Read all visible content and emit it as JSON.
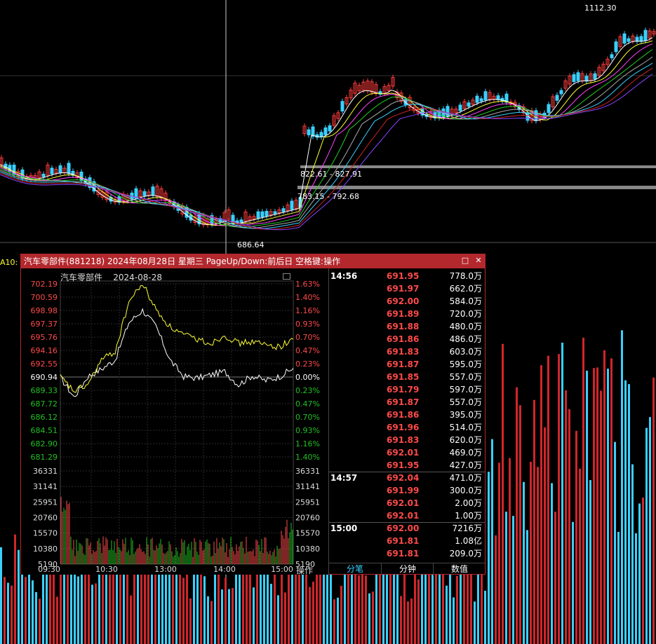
{
  "main_chart": {
    "high_label": "1112.30",
    "low_label": "686.64",
    "gap_upper": "822.61 - 827.91",
    "gap_lower": "783.15 - 792.68",
    "ma_prefix": "A10:"
  },
  "popup": {
    "title": "汽车零部件(881218) 2024年08月28日 星期三 PageUp/Down:前后日 空格键:操作",
    "chart_title": "汽车零部件",
    "chart_date": "2024-08-28",
    "minimize_glyph": "□",
    "close_glyph": "✕",
    "operate_label": "操作",
    "colors": {
      "up": "#ff4a4a",
      "down": "#22c022",
      "neutral": "#ffffff",
      "avg_line": "#ffff33",
      "price_line": "#ffffff"
    },
    "price_labels": [
      {
        "price": "702.19",
        "pct": "1.63%",
        "dir": "up"
      },
      {
        "price": "700.59",
        "pct": "1.40%",
        "dir": "up"
      },
      {
        "price": "698.98",
        "pct": "1.16%",
        "dir": "up"
      },
      {
        "price": "697.37",
        "pct": "0.93%",
        "dir": "up"
      },
      {
        "price": "695.76",
        "pct": "0.70%",
        "dir": "up"
      },
      {
        "price": "694.16",
        "pct": "0.47%",
        "dir": "up"
      },
      {
        "price": "692.55",
        "pct": "0.23%",
        "dir": "up"
      },
      {
        "price": "690.94",
        "pct": "0.00%",
        "dir": "flat"
      },
      {
        "price": "689.33",
        "pct": "0.23%",
        "dir": "down"
      },
      {
        "price": "687.72",
        "pct": "0.47%",
        "dir": "down"
      },
      {
        "price": "686.12",
        "pct": "0.70%",
        "dir": "down"
      },
      {
        "price": "684.51",
        "pct": "0.93%",
        "dir": "down"
      },
      {
        "price": "682.90",
        "pct": "1.16%",
        "dir": "down"
      },
      {
        "price": "681.29",
        "pct": "1.40%",
        "dir": "down"
      }
    ],
    "volume_labels": [
      "36331",
      "31141",
      "25951",
      "20760",
      "15570",
      "10380",
      "5190"
    ],
    "time_labels": [
      "09:30",
      "10:30",
      "13:00",
      "14:00",
      "15:00"
    ],
    "ticks": [
      {
        "time": "14:56",
        "price": "691.95",
        "vol": "778.0万"
      },
      {
        "time": "",
        "price": "691.97",
        "vol": "662.0万"
      },
      {
        "time": "",
        "price": "692.00",
        "vol": "584.0万"
      },
      {
        "time": "",
        "price": "691.89",
        "vol": "720.0万"
      },
      {
        "time": "",
        "price": "691.88",
        "vol": "480.0万"
      },
      {
        "time": "",
        "price": "691.86",
        "vol": "486.0万"
      },
      {
        "time": "",
        "price": "691.83",
        "vol": "603.0万"
      },
      {
        "time": "",
        "price": "691.87",
        "vol": "595.0万"
      },
      {
        "time": "",
        "price": "691.85",
        "vol": "557.0万"
      },
      {
        "time": "",
        "price": "691.79",
        "vol": "597.0万"
      },
      {
        "time": "",
        "price": "691.87",
        "vol": "557.0万"
      },
      {
        "time": "",
        "price": "691.86",
        "vol": "395.0万"
      },
      {
        "time": "",
        "price": "691.96",
        "vol": "514.0万"
      },
      {
        "time": "",
        "price": "691.83",
        "vol": "620.0万"
      },
      {
        "time": "",
        "price": "692.01",
        "vol": "469.0万"
      },
      {
        "time": "",
        "price": "691.95",
        "vol": "427.0万"
      },
      {
        "time": "14:57",
        "price": "692.04",
        "vol": "471.0万"
      },
      {
        "time": "",
        "price": "691.99",
        "vol": "300.0万"
      },
      {
        "time": "",
        "price": "692.01",
        "vol": "2.00万"
      },
      {
        "time": "",
        "price": "692.01",
        "vol": "1.00万"
      },
      {
        "time": "15:00",
        "price": "692.00",
        "vol": "7216万"
      },
      {
        "time": "",
        "price": "691.81",
        "vol": "1.08亿"
      },
      {
        "time": "",
        "price": "691.81",
        "vol": "209.0万"
      }
    ],
    "tabs": [
      {
        "label": "分笔",
        "active": true
      },
      {
        "label": "分钟",
        "active": false
      },
      {
        "label": "数值",
        "active": false
      }
    ]
  },
  "chart_data": {
    "type": "line",
    "title": "汽车零部件",
    "subtitle": "2024-08-28",
    "xlabel": "",
    "ylabel": "",
    "base_price": 690.94,
    "ylim": [
      681.29,
      702.19
    ],
    "x": [
      "09:30",
      "09:45",
      "10:00",
      "10:15",
      "10:30",
      "10:45",
      "11:00",
      "11:15",
      "11:30",
      "13:00",
      "13:15",
      "13:30",
      "13:45",
      "14:00",
      "14:15",
      "14:30",
      "14:45",
      "15:00"
    ],
    "series": [
      {
        "name": "",
        "values": [
          690.9,
          688.5,
          691.0,
          691.9,
          693.0,
          697.5,
          699.0,
          697.0,
          693.0,
          691.0,
          690.8,
          691.2,
          691.6,
          690.0,
          691.1,
          690.5,
          691.0,
          692.0
        ]
      },
      {
        "name": "",
        "values": [
          690.9,
          689.2,
          690.0,
          693.0,
          694.0,
          700.0,
          702.2,
          699.0,
          697.0,
          696.0,
          695.5,
          695.0,
          696.0,
          695.0,
          695.2,
          694.8,
          694.6,
          695.5
        ]
      }
    ],
    "volume_ylim": [
      0,
      36331
    ],
    "grid": true
  }
}
